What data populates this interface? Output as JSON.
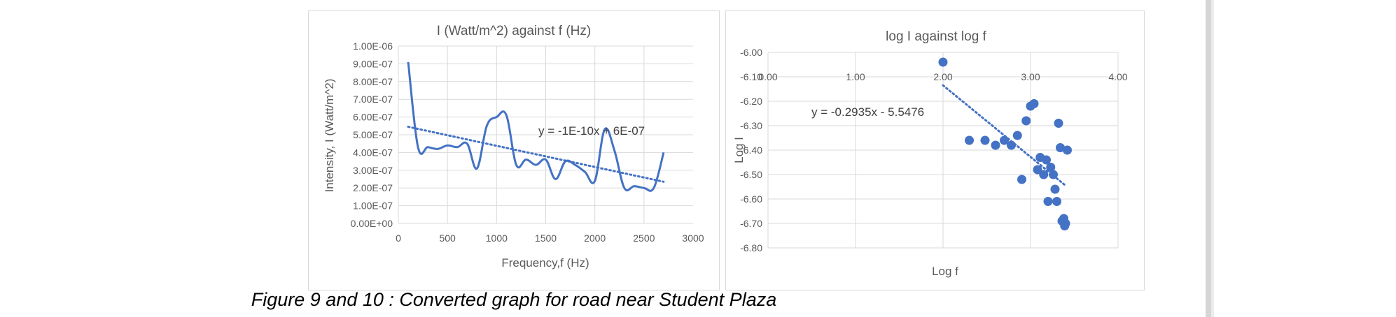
{
  "caption": "Figure 9 and 10 : Converted graph for road near Student Plaza",
  "theme": {
    "series_color": "#4472c4",
    "grid_color": "#d9d9d9",
    "text_color": "#595959"
  },
  "chart_data": [
    {
      "type": "line",
      "title": "I (Watt/m^2) against f (Hz)",
      "xlabel": "Frequency,f (Hz)",
      "ylabel": "Intensity, I (Watt/m^2)",
      "xlim": [
        0,
        3000
      ],
      "ylim": [
        0,
        1e-06
      ],
      "x_ticks": [
        "0",
        "500",
        "1000",
        "1500",
        "2000",
        "2500",
        "3000"
      ],
      "y_ticks": [
        "0.00E+00",
        "1.00E-07",
        "2.00E-07",
        "3.00E-07",
        "4.00E-07",
        "5.00E-07",
        "6.00E-07",
        "7.00E-07",
        "8.00E-07",
        "9.00E-07",
        "1.00E-06"
      ],
      "grid": true,
      "series": [
        {
          "x": [
            100,
            200,
            300,
            400,
            500,
            600,
            700,
            800,
            900,
            1000,
            1100,
            1200,
            1300,
            1400,
            1500,
            1600,
            1700,
            1800,
            1900,
            2000,
            2100,
            2200,
            2300,
            2400,
            2500,
            2600,
            2700
          ],
          "y": [
            9.1e-07,
            4.3e-07,
            4.3e-07,
            4.2e-07,
            4.4e-07,
            4.3e-07,
            4.5e-07,
            3.1e-07,
            5.5e-07,
            6e-07,
            6.1e-07,
            3.3e-07,
            3.6e-07,
            3.3e-07,
            3.6e-07,
            2.5e-07,
            3.5e-07,
            3.3e-07,
            2.9e-07,
            2.4e-07,
            5.3e-07,
            4.1e-07,
            2e-07,
            2.1e-07,
            2e-07,
            2e-07,
            4e-07
          ]
        }
      ],
      "trendline": {
        "equation": "y = -1E-10x + 6E-07",
        "x": [
          100,
          2700
        ],
        "y": [
          5.45e-07,
          2.35e-07
        ]
      }
    },
    {
      "type": "scatter",
      "title": "log I against log f",
      "xlabel": "Log f",
      "ylabel": "Log I",
      "xlim": [
        0,
        4
      ],
      "ylim": [
        -6.8,
        -6.0
      ],
      "x_ticks": [
        "0.00",
        "1.00",
        "2.00",
        "3.00",
        "4.00"
      ],
      "y_ticks": [
        "-6.00",
        "-6.10",
        "-6.20",
        "-6.30",
        "-6.40",
        "-6.50",
        "-6.60",
        "-6.70",
        "-6.80"
      ],
      "grid": true,
      "series": [
        {
          "x": [
            2.0,
            2.3,
            2.48,
            2.6,
            2.7,
            2.78,
            2.85,
            2.9,
            2.95,
            3.0,
            3.04,
            3.08,
            3.11,
            3.15,
            3.18,
            3.2,
            3.23,
            3.26,
            3.28,
            3.3,
            3.32,
            3.34,
            3.36,
            3.38,
            3.39,
            3.4,
            3.42
          ],
          "y": [
            -6.04,
            -6.36,
            -6.36,
            -6.38,
            -6.36,
            -6.38,
            -6.34,
            -6.52,
            -6.28,
            -6.22,
            -6.21,
            -6.48,
            -6.43,
            -6.5,
            -6.44,
            -6.61,
            -6.47,
            -6.5,
            -6.56,
            -6.61,
            -6.29,
            -6.39,
            -6.69,
            -6.68,
            -6.71,
            -6.7,
            -6.4
          ]
        }
      ],
      "trendline": {
        "equation": "y = -0.2935x - 5.5476",
        "x": [
          2.0,
          3.4
        ],
        "y": [
          -6.135,
          -6.545
        ]
      }
    }
  ]
}
